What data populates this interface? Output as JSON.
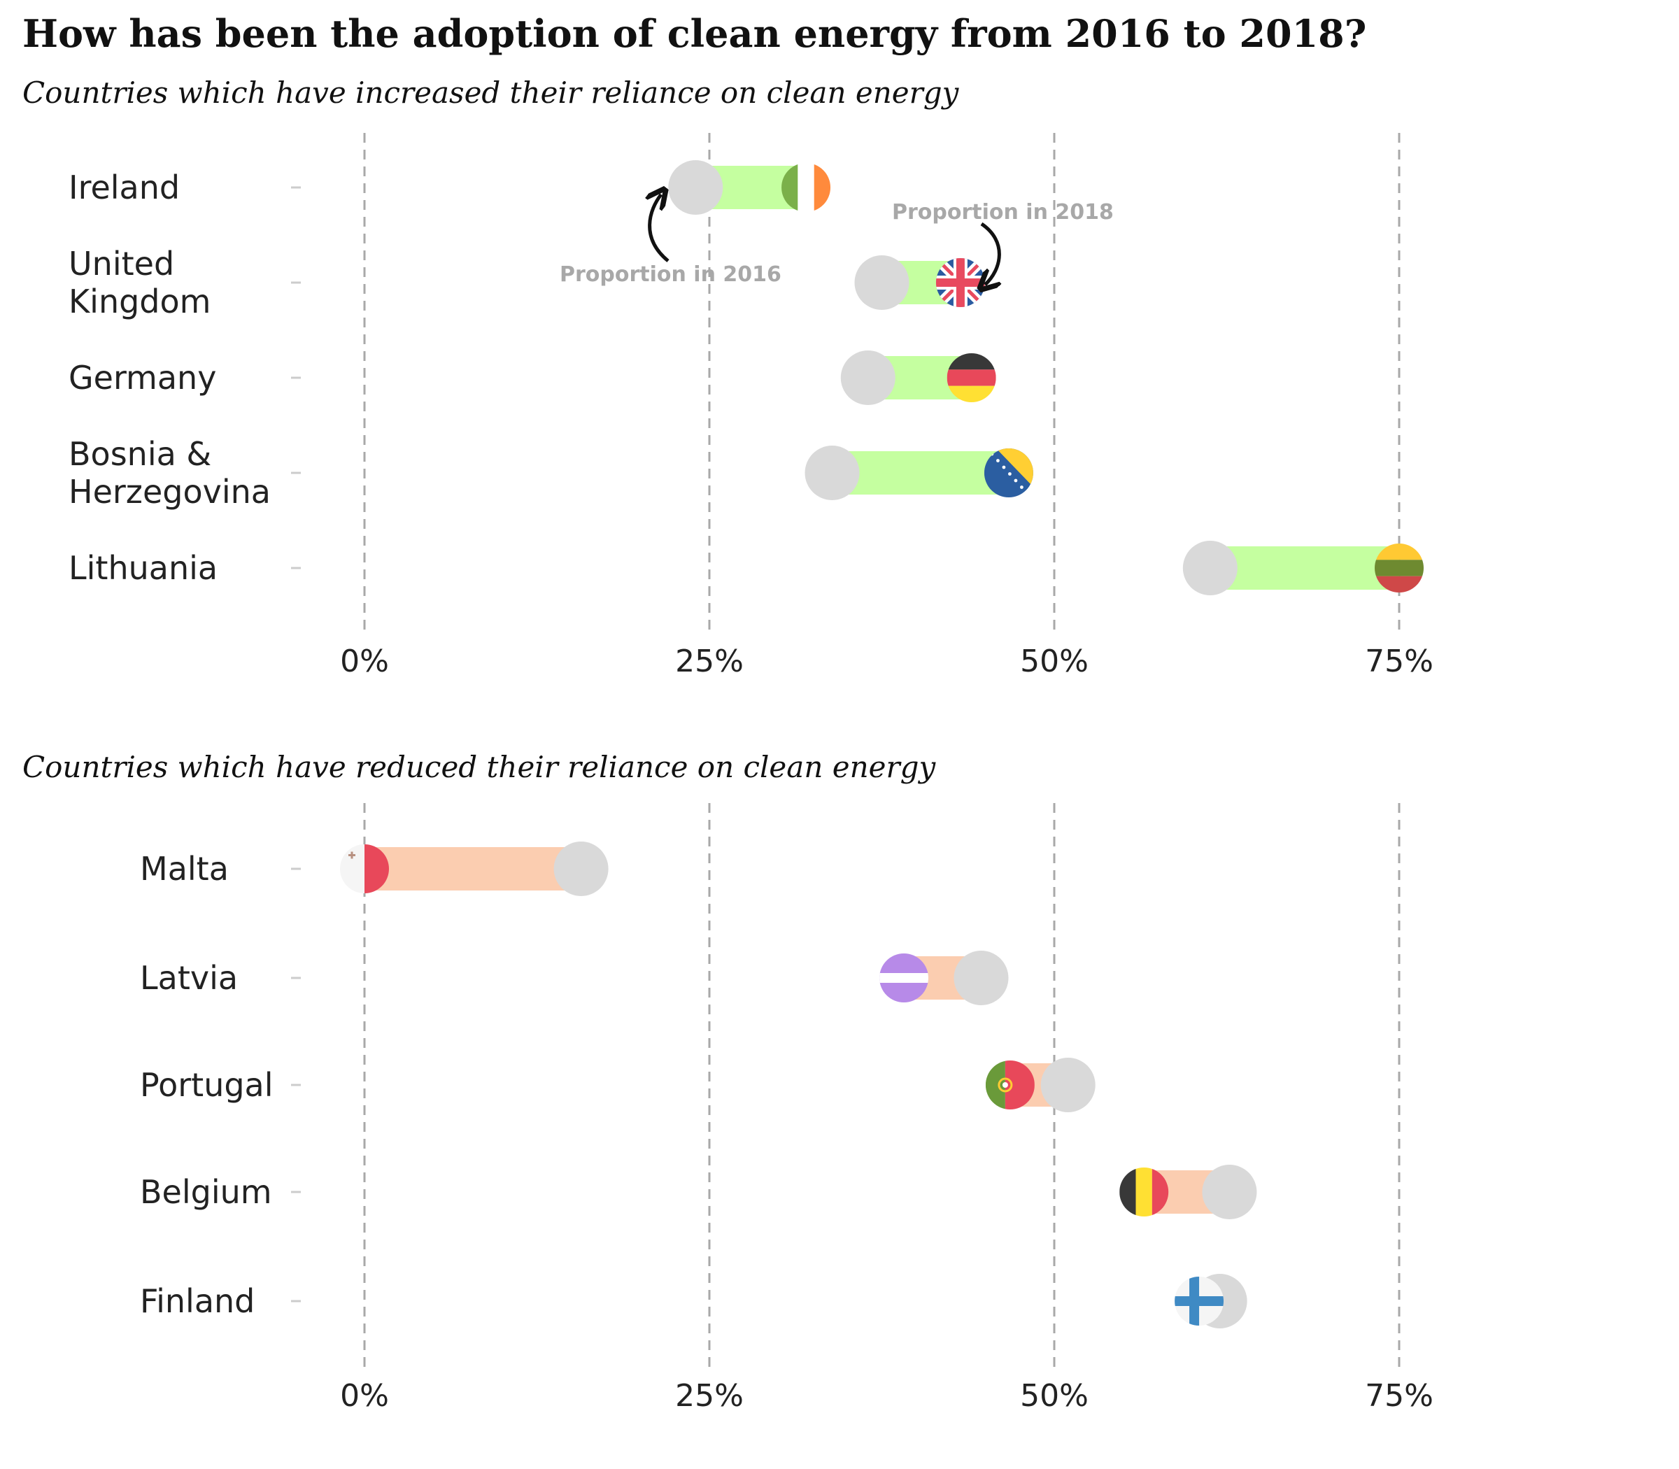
{
  "title": "How has been the adoption of clean energy from 2016 to 2018?",
  "annotations": {
    "p2016": "Proportion in 2016",
    "p2018": "Proportion in 2018"
  },
  "colors": {
    "increase_bar": "#c5ffa0",
    "decrease_bar": "#fbcdb0",
    "dot_2016": "#d9d9d9",
    "grid": "#a8a8a8"
  },
  "chart_data": [
    {
      "type": "dumbbell",
      "subtitle": "Countries which have increased their reliance on clean energy",
      "xlim": [
        0,
        0.75
      ],
      "x_ticks": [
        "0%",
        "25%",
        "50%",
        "75%"
      ],
      "grid": true,
      "countries": [
        {
          "label": [
            "Ireland"
          ],
          "v2016": 0.24,
          "v2018": 0.32,
          "flag": "ireland-flag"
        },
        {
          "label": [
            "United",
            "Kingdom"
          ],
          "v2016": 0.375,
          "v2018": 0.432,
          "flag": "uk-flag"
        },
        {
          "label": [
            "Germany"
          ],
          "v2016": 0.365,
          "v2018": 0.44,
          "flag": "germany-flag"
        },
        {
          "label": [
            "Bosnia &",
            "Herzegovina"
          ],
          "v2016": 0.339,
          "v2018": 0.467,
          "flag": "bosnia-flag"
        },
        {
          "label": [
            "Lithuania"
          ],
          "v2016": 0.613,
          "v2018": 0.75,
          "flag": "lithuania-flag"
        }
      ]
    },
    {
      "type": "dumbbell",
      "subtitle": "Countries which have reduced their reliance on clean energy",
      "xlim": [
        0,
        0.75
      ],
      "x_ticks": [
        "0%",
        "25%",
        "50%",
        "75%"
      ],
      "grid": true,
      "countries": [
        {
          "label": [
            "Malta"
          ],
          "v2016": 0.157,
          "v2018": 0.0,
          "flag": "malta-flag"
        },
        {
          "label": [
            "Latvia"
          ],
          "v2016": 0.447,
          "v2018": 0.391,
          "flag": "latvia-flag"
        },
        {
          "label": [
            "Portugal"
          ],
          "v2016": 0.51,
          "v2018": 0.468,
          "flag": "portugal-flag"
        },
        {
          "label": [
            "Belgium"
          ],
          "v2016": 0.627,
          "v2018": 0.565,
          "flag": "belgium-flag"
        },
        {
          "label": [
            "Finland"
          ],
          "v2016": 0.62,
          "v2018": 0.605,
          "flag": "finland-flag"
        }
      ]
    }
  ]
}
